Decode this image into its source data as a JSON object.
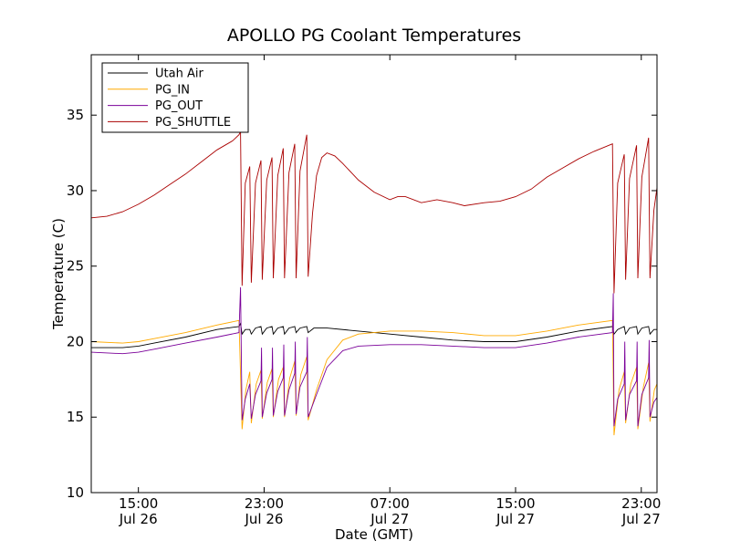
{
  "chart_data": {
    "type": "line",
    "title": "APOLLO PG Coolant Temperatures",
    "xlabel": "Date (GMT)",
    "ylabel": "Temperature (C)",
    "xlim": [
      "2013-07-26T12:00",
      "2013-07-28T00:00"
    ],
    "ylim": [
      10,
      39
    ],
    "yticks": [
      10,
      15,
      20,
      25,
      30,
      35
    ],
    "xticks": [
      {
        "at": "2013-07-26T15:00",
        "time": "15:00",
        "date": "Jul 26"
      },
      {
        "at": "2013-07-26T23:00",
        "time": "23:00",
        "date": "Jul 26"
      },
      {
        "at": "2013-07-27T07:00",
        "time": "07:00",
        "date": "Jul 27"
      },
      {
        "at": "2013-07-27T15:00",
        "time": "15:00",
        "date": "Jul 27"
      },
      {
        "at": "2013-07-27T23:00",
        "time": "23:00",
        "date": "Jul 27"
      }
    ],
    "grid": false,
    "legend_position": "top-left",
    "series": [
      {
        "name": "Utah Air",
        "color": "#000000",
        "points": [
          [
            "2013-07-26T12:00",
            19.6
          ],
          [
            "2013-07-26T14:00",
            19.6
          ],
          [
            "2013-07-26T15:00",
            19.7
          ],
          [
            "2013-07-26T16:00",
            19.9
          ],
          [
            "2013-07-26T18:00",
            20.3
          ],
          [
            "2013-07-26T20:00",
            20.8
          ],
          [
            "2013-07-26T21:24",
            21.0
          ],
          [
            "2013-07-26T21:30",
            21.2
          ],
          [
            "2013-07-26T21:36",
            20.5
          ],
          [
            "2013-07-26T21:48",
            20.8
          ],
          [
            "2013-07-26T22:05",
            20.8
          ],
          [
            "2013-07-26T22:11",
            20.5
          ],
          [
            "2013-07-26T22:27",
            20.9
          ],
          [
            "2013-07-26T22:48",
            21.0
          ],
          [
            "2013-07-26T22:53",
            20.5
          ],
          [
            "2013-07-26T23:10",
            20.9
          ],
          [
            "2013-07-26T23:30",
            21.0
          ],
          [
            "2013-07-26T23:35",
            20.5
          ],
          [
            "2013-07-26T23:52",
            20.9
          ],
          [
            "2013-07-27T00:13",
            21.0
          ],
          [
            "2013-07-27T00:18",
            20.5
          ],
          [
            "2013-07-27T00:35",
            20.9
          ],
          [
            "2013-07-27T00:57",
            21.0
          ],
          [
            "2013-07-27T01:02",
            20.6
          ],
          [
            "2013-07-27T01:17",
            20.9
          ],
          [
            "2013-07-27T01:43",
            21.0
          ],
          [
            "2013-07-27T01:48",
            20.6
          ],
          [
            "2013-07-27T02:10",
            20.9
          ],
          [
            "2013-07-27T03:00",
            20.9
          ],
          [
            "2013-07-27T05:00",
            20.7
          ],
          [
            "2013-07-27T07:00",
            20.5
          ],
          [
            "2013-07-27T09:00",
            20.3
          ],
          [
            "2013-07-27T11:00",
            20.1
          ],
          [
            "2013-07-27T13:00",
            20.0
          ],
          [
            "2013-07-27T15:00",
            20.0
          ],
          [
            "2013-07-27T17:00",
            20.3
          ],
          [
            "2013-07-27T19:00",
            20.7
          ],
          [
            "2013-07-27T21:10",
            21.0
          ],
          [
            "2013-07-27T21:16",
            20.5
          ],
          [
            "2013-07-27T21:30",
            20.8
          ],
          [
            "2013-07-27T21:55",
            21.0
          ],
          [
            "2013-07-27T22:00",
            20.5
          ],
          [
            "2013-07-27T22:15",
            20.9
          ],
          [
            "2013-07-27T22:42",
            21.0
          ],
          [
            "2013-07-27T22:47",
            20.5
          ],
          [
            "2013-07-27T23:02",
            20.9
          ],
          [
            "2013-07-27T23:28",
            21.0
          ],
          [
            "2013-07-27T23:33",
            20.5
          ],
          [
            "2013-07-27T23:48",
            20.8
          ],
          [
            "2013-07-28T00:00",
            20.8
          ]
        ]
      },
      {
        "name": "PG_IN",
        "color": "#ffaa00",
        "points": [
          [
            "2013-07-26T12:00",
            20.0
          ],
          [
            "2013-07-26T14:00",
            19.9
          ],
          [
            "2013-07-26T15:00",
            20.0
          ],
          [
            "2013-07-26T16:00",
            20.2
          ],
          [
            "2013-07-26T18:00",
            20.6
          ],
          [
            "2013-07-26T20:00",
            21.1
          ],
          [
            "2013-07-26T21:24",
            21.4
          ],
          [
            "2013-07-26T21:36",
            14.2
          ],
          [
            "2013-07-26T21:50",
            16.8
          ],
          [
            "2013-07-26T22:05",
            18.0
          ],
          [
            "2013-07-26T22:11",
            14.6
          ],
          [
            "2013-07-26T22:30",
            17.2
          ],
          [
            "2013-07-26T22:48",
            18.1
          ],
          [
            "2013-07-26T22:53",
            14.9
          ],
          [
            "2013-07-26T23:12",
            17.3
          ],
          [
            "2013-07-26T23:30",
            18.2
          ],
          [
            "2013-07-26T23:35",
            15.0
          ],
          [
            "2013-07-26T23:55",
            17.5
          ],
          [
            "2013-07-27T00:13",
            18.3
          ],
          [
            "2013-07-27T00:18",
            15.0
          ],
          [
            "2013-07-27T00:38",
            17.6
          ],
          [
            "2013-07-27T00:57",
            18.7
          ],
          [
            "2013-07-27T01:02",
            15.1
          ],
          [
            "2013-07-27T01:20",
            17.8
          ],
          [
            "2013-07-27T01:43",
            19.0
          ],
          [
            "2013-07-27T01:48",
            14.8
          ],
          [
            "2013-07-27T02:20",
            16.8
          ],
          [
            "2013-07-27T03:00",
            18.8
          ],
          [
            "2013-07-27T04:00",
            20.1
          ],
          [
            "2013-07-27T05:00",
            20.5
          ],
          [
            "2013-07-27T07:00",
            20.7
          ],
          [
            "2013-07-27T09:00",
            20.7
          ],
          [
            "2013-07-27T11:00",
            20.6
          ],
          [
            "2013-07-27T13:00",
            20.4
          ],
          [
            "2013-07-27T15:00",
            20.4
          ],
          [
            "2013-07-27T17:00",
            20.7
          ],
          [
            "2013-07-27T19:00",
            21.1
          ],
          [
            "2013-07-27T21:10",
            21.4
          ],
          [
            "2013-07-27T21:16",
            13.8
          ],
          [
            "2013-07-27T21:35",
            16.8
          ],
          [
            "2013-07-27T21:55",
            18.0
          ],
          [
            "2013-07-27T22:00",
            14.6
          ],
          [
            "2013-07-27T22:20",
            17.2
          ],
          [
            "2013-07-27T22:42",
            18.3
          ],
          [
            "2013-07-27T22:47",
            14.2
          ],
          [
            "2013-07-27T23:08",
            17.0
          ],
          [
            "2013-07-27T23:28",
            18.6
          ],
          [
            "2013-07-27T23:33",
            14.7
          ],
          [
            "2013-07-27T23:50",
            16.8
          ],
          [
            "2013-07-28T00:00",
            17.2
          ]
        ]
      },
      {
        "name": "PG_OUT",
        "color": "#7a0099",
        "points": [
          [
            "2013-07-26T12:00",
            19.3
          ],
          [
            "2013-07-26T14:00",
            19.2
          ],
          [
            "2013-07-26T15:00",
            19.3
          ],
          [
            "2013-07-26T16:00",
            19.5
          ],
          [
            "2013-07-26T18:00",
            19.9
          ],
          [
            "2013-07-26T20:00",
            20.3
          ],
          [
            "2013-07-26T21:24",
            20.6
          ],
          [
            "2013-07-26T21:30",
            23.6
          ],
          [
            "2013-07-26T21:36",
            14.8
          ],
          [
            "2013-07-26T21:48",
            16.2
          ],
          [
            "2013-07-26T22:05",
            17.2
          ],
          [
            "2013-07-26T22:11",
            14.9
          ],
          [
            "2013-07-26T22:27",
            16.5
          ],
          [
            "2013-07-26T22:48",
            17.4
          ],
          [
            "2013-07-26T22:50",
            19.6
          ],
          [
            "2013-07-26T22:53",
            15.0
          ],
          [
            "2013-07-26T23:10",
            16.6
          ],
          [
            "2013-07-26T23:30",
            17.5
          ],
          [
            "2013-07-26T23:32",
            19.6
          ],
          [
            "2013-07-26T23:35",
            15.1
          ],
          [
            "2013-07-26T23:52",
            16.7
          ],
          [
            "2013-07-27T00:13",
            17.6
          ],
          [
            "2013-07-27T00:15",
            19.8
          ],
          [
            "2013-07-27T00:18",
            15.1
          ],
          [
            "2013-07-27T00:35",
            16.8
          ],
          [
            "2013-07-27T00:57",
            17.9
          ],
          [
            "2013-07-27T00:59",
            20.0
          ],
          [
            "2013-07-27T01:02",
            15.2
          ],
          [
            "2013-07-27T01:17",
            17.0
          ],
          [
            "2013-07-27T01:43",
            18.0
          ],
          [
            "2013-07-27T01:45",
            20.3
          ],
          [
            "2013-07-27T01:48",
            15.0
          ],
          [
            "2013-07-27T02:20",
            16.5
          ],
          [
            "2013-07-27T03:00",
            18.3
          ],
          [
            "2013-07-27T04:00",
            19.4
          ],
          [
            "2013-07-27T05:00",
            19.7
          ],
          [
            "2013-07-27T07:00",
            19.8
          ],
          [
            "2013-07-27T09:00",
            19.8
          ],
          [
            "2013-07-27T11:00",
            19.7
          ],
          [
            "2013-07-27T13:00",
            19.6
          ],
          [
            "2013-07-27T15:00",
            19.6
          ],
          [
            "2013-07-27T17:00",
            19.9
          ],
          [
            "2013-07-27T19:00",
            20.3
          ],
          [
            "2013-07-27T21:10",
            20.6
          ],
          [
            "2013-07-27T21:13",
            23.2
          ],
          [
            "2013-07-27T21:16",
            14.4
          ],
          [
            "2013-07-27T21:30",
            16.2
          ],
          [
            "2013-07-27T21:55",
            17.2
          ],
          [
            "2013-07-27T21:57",
            20.0
          ],
          [
            "2013-07-27T22:00",
            14.8
          ],
          [
            "2013-07-27T22:15",
            16.5
          ],
          [
            "2013-07-27T22:42",
            17.4
          ],
          [
            "2013-07-27T22:44",
            20.0
          ],
          [
            "2013-07-27T22:47",
            14.4
          ],
          [
            "2013-07-27T23:02",
            16.5
          ],
          [
            "2013-07-27T23:28",
            17.6
          ],
          [
            "2013-07-27T23:30",
            20.1
          ],
          [
            "2013-07-27T23:33",
            15.0
          ],
          [
            "2013-07-27T23:48",
            16.0
          ],
          [
            "2013-07-28T00:00",
            16.3
          ]
        ]
      },
      {
        "name": "PG_SHUTTLE",
        "color": "#aa0000",
        "points": [
          [
            "2013-07-26T12:00",
            28.2
          ],
          [
            "2013-07-26T13:00",
            28.3
          ],
          [
            "2013-07-26T14:00",
            28.6
          ],
          [
            "2013-07-26T15:00",
            29.1
          ],
          [
            "2013-07-26T16:00",
            29.7
          ],
          [
            "2013-07-26T17:00",
            30.4
          ],
          [
            "2013-07-26T18:00",
            31.1
          ],
          [
            "2013-07-26T19:00",
            31.9
          ],
          [
            "2013-07-26T20:00",
            32.7
          ],
          [
            "2013-07-26T21:00",
            33.3
          ],
          [
            "2013-07-26T21:24",
            33.7
          ],
          [
            "2013-07-26T21:30",
            33.9
          ],
          [
            "2013-07-26T21:36",
            23.7
          ],
          [
            "2013-07-26T21:48",
            30.5
          ],
          [
            "2013-07-26T22:05",
            31.6
          ],
          [
            "2013-07-26T22:11",
            23.9
          ],
          [
            "2013-07-26T22:27",
            30.5
          ],
          [
            "2013-07-26T22:48",
            32.0
          ],
          [
            "2013-07-26T22:53",
            24.1
          ],
          [
            "2013-07-26T23:10",
            30.7
          ],
          [
            "2013-07-26T23:30",
            32.2
          ],
          [
            "2013-07-26T23:35",
            24.2
          ],
          [
            "2013-07-26T23:52",
            31.0
          ],
          [
            "2013-07-27T00:13",
            32.8
          ],
          [
            "2013-07-27T00:18",
            24.2
          ],
          [
            "2013-07-27T00:35",
            31.2
          ],
          [
            "2013-07-27T00:57",
            33.1
          ],
          [
            "2013-07-27T01:02",
            24.2
          ],
          [
            "2013-07-27T01:17",
            31.3
          ],
          [
            "2013-07-27T01:43",
            33.7
          ],
          [
            "2013-07-27T01:48",
            24.3
          ],
          [
            "2013-07-27T02:05",
            28.5
          ],
          [
            "2013-07-27T02:20",
            31.0
          ],
          [
            "2013-07-27T02:40",
            32.2
          ],
          [
            "2013-07-27T03:00",
            32.5
          ],
          [
            "2013-07-27T03:30",
            32.3
          ],
          [
            "2013-07-27T04:00",
            31.8
          ],
          [
            "2013-07-27T05:00",
            30.7
          ],
          [
            "2013-07-27T06:00",
            29.9
          ],
          [
            "2013-07-27T07:00",
            29.4
          ],
          [
            "2013-07-27T07:30",
            29.6
          ],
          [
            "2013-07-27T08:00",
            29.6
          ],
          [
            "2013-07-27T09:00",
            29.2
          ],
          [
            "2013-07-27T10:00",
            29.4
          ],
          [
            "2013-07-27T11:00",
            29.2
          ],
          [
            "2013-07-27T11:45",
            29.0
          ],
          [
            "2013-07-27T13:00",
            29.2
          ],
          [
            "2013-07-27T14:00",
            29.3
          ],
          [
            "2013-07-27T15:00",
            29.6
          ],
          [
            "2013-07-27T16:00",
            30.1
          ],
          [
            "2013-07-27T17:00",
            30.9
          ],
          [
            "2013-07-27T18:00",
            31.5
          ],
          [
            "2013-07-27T19:00",
            32.1
          ],
          [
            "2013-07-27T20:00",
            32.6
          ],
          [
            "2013-07-27T21:10",
            33.1
          ],
          [
            "2013-07-27T21:16",
            23.2
          ],
          [
            "2013-07-27T21:30",
            30.5
          ],
          [
            "2013-07-27T21:55",
            32.4
          ],
          [
            "2013-07-27T22:00",
            24.1
          ],
          [
            "2013-07-27T22:15",
            30.8
          ],
          [
            "2013-07-27T22:42",
            33.0
          ],
          [
            "2013-07-27T22:47",
            24.2
          ],
          [
            "2013-07-27T23:02",
            30.9
          ],
          [
            "2013-07-27T23:28",
            33.5
          ],
          [
            "2013-07-27T23:33",
            24.2
          ],
          [
            "2013-07-27T23:48",
            28.7
          ],
          [
            "2013-07-28T00:00",
            30.2
          ]
        ]
      }
    ]
  }
}
